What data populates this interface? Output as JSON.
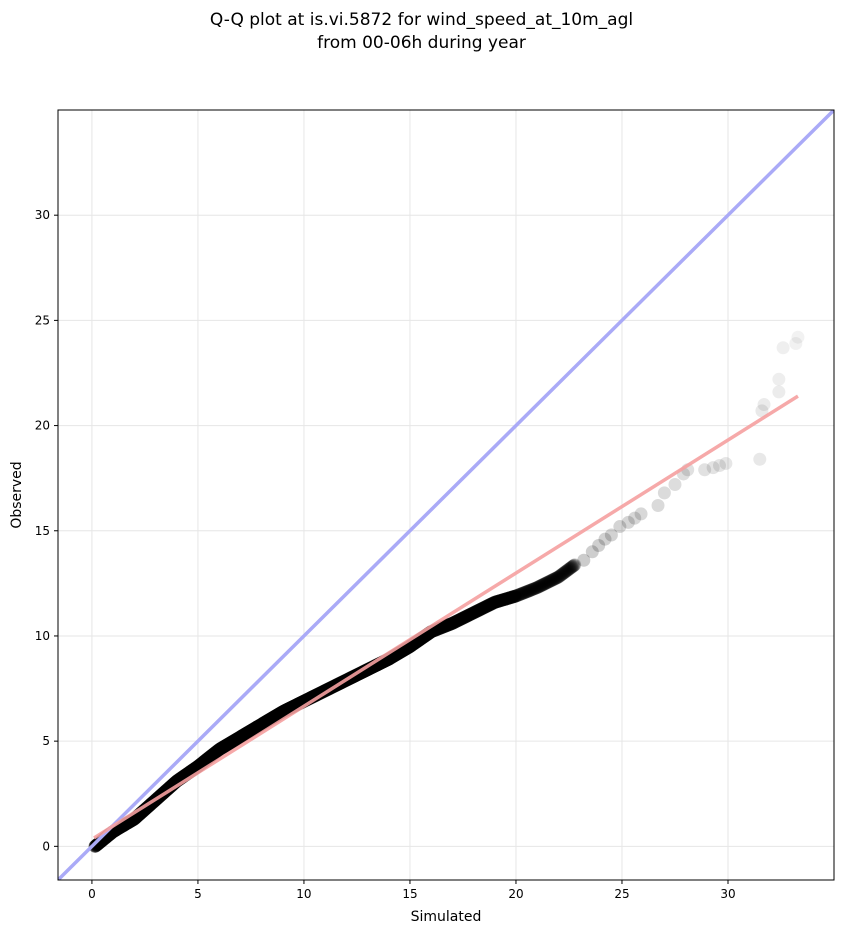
{
  "chart_data": {
    "type": "scatter",
    "title": "Q-Q plot at is.vi.5872 for wind_speed_at_10m_agl",
    "subtitle": "from 00-06h during year",
    "xlabel": "Simulated",
    "ylabel": "Observed",
    "xlim": [
      -1.6,
      35
    ],
    "ylim": [
      -1.6,
      35
    ],
    "x_ticks": [
      0,
      5,
      10,
      15,
      20,
      25,
      30
    ],
    "y_ticks": [
      0,
      5,
      10,
      15,
      20,
      25,
      30
    ],
    "grid": true,
    "reference_line": {
      "from": [
        -1.6,
        -1.6
      ],
      "to": [
        35,
        35
      ],
      "color": "#aaaaf7"
    },
    "fit_line": {
      "from": [
        0.1,
        0.4
      ],
      "to": [
        33.3,
        21.4
      ],
      "color": "#f5a0a0"
    },
    "point_color": "#000000",
    "quantile_curve": [
      [
        0.15,
        0.0
      ],
      [
        1.0,
        0.7
      ],
      [
        2.0,
        1.3
      ],
      [
        3.0,
        2.2
      ],
      [
        4.0,
        3.1
      ],
      [
        5.0,
        3.8
      ],
      [
        6.0,
        4.6
      ],
      [
        7.0,
        5.2
      ],
      [
        8.0,
        5.8
      ],
      [
        9.0,
        6.4
      ],
      [
        10.0,
        6.9
      ],
      [
        11.0,
        7.4
      ],
      [
        12.0,
        7.9
      ],
      [
        13.0,
        8.4
      ],
      [
        14.0,
        8.9
      ],
      [
        15.0,
        9.5
      ],
      [
        16.0,
        10.2
      ],
      [
        17.0,
        10.6
      ],
      [
        18.0,
        11.1
      ],
      [
        19.0,
        11.6
      ],
      [
        20.0,
        11.9
      ],
      [
        21.0,
        12.3
      ],
      [
        22.0,
        12.8
      ],
      [
        22.8,
        13.4
      ]
    ],
    "tail_points": [
      [
        23.2,
        13.6
      ],
      [
        23.6,
        14.0
      ],
      [
        23.9,
        14.3
      ],
      [
        24.2,
        14.6
      ],
      [
        24.5,
        14.8
      ],
      [
        24.9,
        15.2
      ],
      [
        25.3,
        15.4
      ],
      [
        25.6,
        15.6
      ],
      [
        25.9,
        15.8
      ],
      [
        26.7,
        16.2
      ],
      [
        27.0,
        16.8
      ],
      [
        27.5,
        17.2
      ],
      [
        27.9,
        17.7
      ],
      [
        28.1,
        17.9
      ],
      [
        28.9,
        17.9
      ],
      [
        29.3,
        18.0
      ],
      [
        29.6,
        18.1
      ],
      [
        29.9,
        18.2
      ],
      [
        31.5,
        18.4
      ],
      [
        31.6,
        20.7
      ],
      [
        31.7,
        21.0
      ],
      [
        32.4,
        21.6
      ],
      [
        32.4,
        22.2
      ],
      [
        32.6,
        23.7
      ],
      [
        33.2,
        23.9
      ],
      [
        33.3,
        24.2
      ]
    ]
  }
}
